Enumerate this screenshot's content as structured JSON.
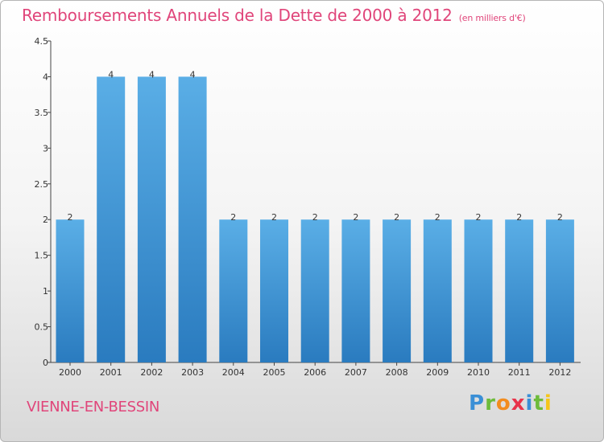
{
  "header": {
    "title": "Remboursements Annuels de la Dette de 2000 à 2012",
    "unit": "(en milliers d'€)"
  },
  "footer": {
    "place": "VIENNE-EN-BESSIN",
    "logo": "Proxiti"
  },
  "chart_data": {
    "type": "bar",
    "title": "Remboursements Annuels de la Dette de 2000 à 2012",
    "subtitle": "(en milliers d'€)",
    "categories": [
      "2000",
      "2001",
      "2002",
      "2003",
      "2004",
      "2005",
      "2006",
      "2007",
      "2008",
      "2009",
      "2010",
      "2011",
      "2012"
    ],
    "values": [
      2,
      4,
      4,
      4,
      2,
      2,
      2,
      2,
      2,
      2,
      2,
      2,
      2
    ],
    "data_labels": [
      "2",
      "4",
      "4",
      "4",
      "2",
      "2",
      "2",
      "2",
      "2",
      "2",
      "2",
      "2",
      "2"
    ],
    "ylim": [
      0,
      4.5
    ],
    "yticks": [
      0,
      0.5,
      1,
      1.5,
      2,
      2.5,
      3,
      3.5,
      4,
      4.5
    ],
    "ytick_labels": [
      "0",
      "0.5",
      "1",
      "1.5",
      "2",
      "2.5",
      "3",
      "3.5",
      "4",
      "4.5"
    ],
    "xlabel": "",
    "ylabel": "",
    "grid": false,
    "legend": "none",
    "bar_color_top": "#5aaee6",
    "bar_color_bottom": "#2a7bbf",
    "title_color": "#e0457a"
  }
}
